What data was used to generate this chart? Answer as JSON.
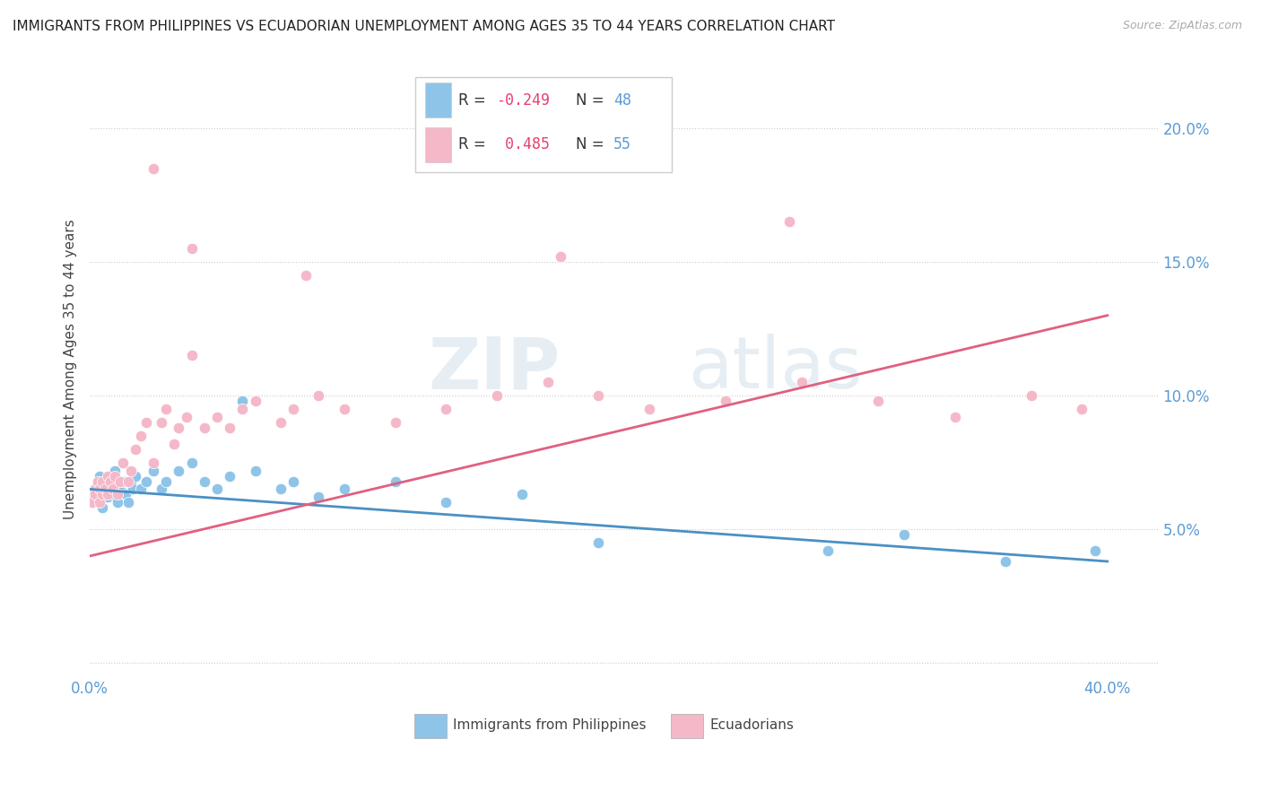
{
  "title": "IMMIGRANTS FROM PHILIPPINES VS ECUADORIAN UNEMPLOYMENT AMONG AGES 35 TO 44 YEARS CORRELATION CHART",
  "source": "Source: ZipAtlas.com",
  "ylabel": "Unemployment Among Ages 35 to 44 years",
  "ytick_vals": [
    0.0,
    0.05,
    0.1,
    0.15,
    0.2
  ],
  "ytick_labels": [
    "",
    "5.0%",
    "10.0%",
    "15.0%",
    "20.0%"
  ],
  "xtick_vals": [
    0.0,
    0.4
  ],
  "xtick_labels": [
    "0.0%",
    "40.0%"
  ],
  "xlim": [
    0.0,
    0.42
  ],
  "ylim": [
    -0.005,
    0.225
  ],
  "color_blue": "#8ec4e8",
  "color_pink": "#f4b8c8",
  "color_line_blue": "#4a90c4",
  "color_line_pink": "#e06080",
  "watermark_zip": "ZIP",
  "watermark_atlas": "atlas",
  "blue_line_start": 0.065,
  "blue_line_end": 0.038,
  "pink_line_start": 0.04,
  "pink_line_end": 0.13,
  "blue_scatter_x": [
    0.001,
    0.002,
    0.003,
    0.003,
    0.004,
    0.004,
    0.005,
    0.005,
    0.006,
    0.006,
    0.007,
    0.007,
    0.008,
    0.008,
    0.009,
    0.009,
    0.01,
    0.01,
    0.011,
    0.012,
    0.013,
    0.014,
    0.015,
    0.016,
    0.017,
    0.018,
    0.02,
    0.022,
    0.025,
    0.028,
    0.03,
    0.035,
    0.04,
    0.045,
    0.05,
    0.055,
    0.06,
    0.065,
    0.075,
    0.08,
    0.09,
    0.1,
    0.12,
    0.14,
    0.17,
    0.2,
    0.29,
    0.32,
    0.36,
    0.395
  ],
  "blue_scatter_y": [
    0.063,
    0.065,
    0.068,
    0.06,
    0.063,
    0.07,
    0.058,
    0.065,
    0.063,
    0.068,
    0.062,
    0.067,
    0.065,
    0.07,
    0.063,
    0.068,
    0.065,
    0.072,
    0.06,
    0.065,
    0.068,
    0.063,
    0.06,
    0.068,
    0.065,
    0.07,
    0.065,
    0.068,
    0.072,
    0.065,
    0.068,
    0.072,
    0.075,
    0.068,
    0.065,
    0.07,
    0.098,
    0.072,
    0.065,
    0.068,
    0.062,
    0.065,
    0.068,
    0.06,
    0.063,
    0.045,
    0.042,
    0.048,
    0.038,
    0.042
  ],
  "pink_scatter_x": [
    0.001,
    0.002,
    0.002,
    0.003,
    0.004,
    0.004,
    0.005,
    0.005,
    0.006,
    0.007,
    0.007,
    0.008,
    0.009,
    0.01,
    0.011,
    0.012,
    0.013,
    0.015,
    0.016,
    0.018,
    0.02,
    0.022,
    0.025,
    0.028,
    0.03,
    0.033,
    0.035,
    0.038,
    0.04,
    0.045,
    0.05,
    0.055,
    0.06,
    0.065,
    0.075,
    0.08,
    0.09,
    0.1,
    0.12,
    0.14,
    0.16,
    0.18,
    0.2,
    0.22,
    0.25,
    0.28,
    0.31,
    0.34,
    0.37,
    0.39,
    0.025,
    0.04,
    0.085,
    0.185,
    0.275
  ],
  "pink_scatter_y": [
    0.06,
    0.065,
    0.063,
    0.068,
    0.06,
    0.065,
    0.063,
    0.068,
    0.065,
    0.07,
    0.063,
    0.068,
    0.065,
    0.07,
    0.063,
    0.068,
    0.075,
    0.068,
    0.072,
    0.08,
    0.085,
    0.09,
    0.075,
    0.09,
    0.095,
    0.082,
    0.088,
    0.092,
    0.115,
    0.088,
    0.092,
    0.088,
    0.095,
    0.098,
    0.09,
    0.095,
    0.1,
    0.095,
    0.09,
    0.095,
    0.1,
    0.105,
    0.1,
    0.095,
    0.098,
    0.105,
    0.098,
    0.092,
    0.1,
    0.095,
    0.185,
    0.155,
    0.145,
    0.152,
    0.165
  ]
}
